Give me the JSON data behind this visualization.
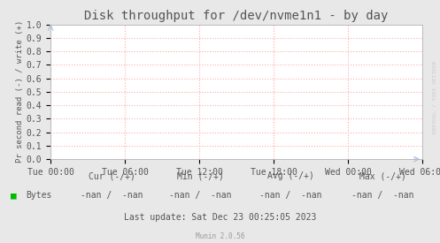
{
  "title": "Disk throughput for /dev/nvme1n1 - by day",
  "ylabel": "Pr second read (-) / write (+)",
  "background_color": "#e8e8e8",
  "plot_bg_color": "#ffffff",
  "grid_color": "#ffaaaa",
  "border_color": "#bbbbbb",
  "ylim": [
    0.0,
    1.0
  ],
  "yticks": [
    0.0,
    0.1,
    0.2,
    0.3,
    0.4,
    0.5,
    0.6,
    0.7,
    0.8,
    0.9,
    1.0
  ],
  "xtick_labels": [
    "Tue 00:00",
    "Tue 06:00",
    "Tue 12:00",
    "Tue 18:00",
    "Wed 00:00",
    "Wed 06:00"
  ],
  "legend_label": "Bytes",
  "legend_color": "#00bb00",
  "cur_label": "Cur (-/+)",
  "min_label": "Min (-/+)",
  "avg_label": "Avg (-/+)",
  "max_label": "Max (-/+)",
  "cur_val": "-nan /  -nan",
  "min_val": "-nan /  -nan",
  "avg_val": "-nan /  -nan",
  "max_val": "-nan /  -nan",
  "last_update": "Last update: Sat Dec 23 00:25:05 2023",
  "munin_version": "Munin 2.0.56",
  "watermark": "RRDTOOL / TOBI OETIKER",
  "title_fontsize": 10,
  "tick_fontsize": 7,
  "legend_fontsize": 7.5,
  "stats_fontsize": 7,
  "watermark_fontsize": 4.5,
  "text_color": "#555555"
}
